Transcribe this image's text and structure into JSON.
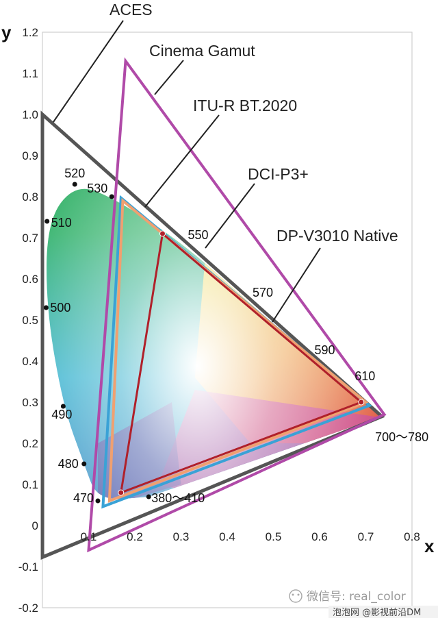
{
  "chart_data": {
    "type": "scatter",
    "title": "",
    "xlabel": "x",
    "ylabel": "y",
    "xlim": [
      0,
      0.8
    ],
    "ylim": [
      -0.2,
      1.2
    ],
    "x_ticks": [
      "0.1",
      "0.2",
      "0.3",
      "0.4",
      "0.5",
      "0.6",
      "0.7",
      "0.8"
    ],
    "y_ticks": [
      "-0.2",
      "-0.1",
      "0",
      "0.1",
      "0.2",
      "0.3",
      "0.4",
      "0.5",
      "0.6",
      "0.7",
      "0.8",
      "0.9",
      "1.0",
      "1.1",
      "1.2"
    ],
    "grid": false,
    "spectral_locus": [
      {
        "label": "380～410",
        "x": 0.23,
        "y": 0.07
      },
      {
        "label": "470",
        "x": 0.12,
        "y": 0.06
      },
      {
        "label": "480",
        "x": 0.09,
        "y": 0.15
      },
      {
        "label": "490",
        "x": 0.045,
        "y": 0.29
      },
      {
        "label": "500",
        "x": 0.008,
        "y": 0.53
      },
      {
        "label": "510",
        "x": 0.01,
        "y": 0.74
      },
      {
        "label": "520",
        "x": 0.07,
        "y": 0.83
      },
      {
        "label": "530",
        "x": 0.15,
        "y": 0.8
      },
      {
        "label": "550",
        "x": 0.3,
        "y": 0.69
      },
      {
        "label": "570",
        "x": 0.44,
        "y": 0.55
      },
      {
        "label": "590",
        "x": 0.58,
        "y": 0.41
      },
      {
        "label": "610",
        "x": 0.67,
        "y": 0.33
      },
      {
        "label": "700～780",
        "x": 0.735,
        "y": 0.265
      }
    ],
    "series": [
      {
        "name": "ACES",
        "color": "#555555",
        "points": [
          [
            0.0,
            1.0
          ],
          [
            0.7347,
            0.2653
          ],
          [
            0.0001,
            -0.077
          ]
        ]
      },
      {
        "name": "Cinema Gamut",
        "color": "#b04aa8",
        "points": [
          [
            0.18,
            1.13
          ],
          [
            0.74,
            0.27
          ],
          [
            0.1,
            -0.06
          ]
        ]
      },
      {
        "name": "ITU-R BT.2020",
        "color": "#3aa2d6",
        "points": [
          [
            0.17,
            0.797
          ],
          [
            0.708,
            0.292
          ],
          [
            0.131,
            0.046
          ]
        ]
      },
      {
        "name": "DCI-P3+",
        "color": "#f0a070",
        "points": [
          [
            0.174,
            0.79
          ],
          [
            0.7,
            0.3
          ],
          [
            0.145,
            0.06
          ]
        ]
      },
      {
        "name": "DP-V3010 Native",
        "color": "#b0202a",
        "points": [
          [
            0.26,
            0.71
          ],
          [
            0.69,
            0.3
          ],
          [
            0.17,
            0.08
          ]
        ]
      }
    ]
  },
  "watermark": {
    "text": "微信号: real_color",
    "sub": "泡泡网 @影视前沿DM"
  }
}
